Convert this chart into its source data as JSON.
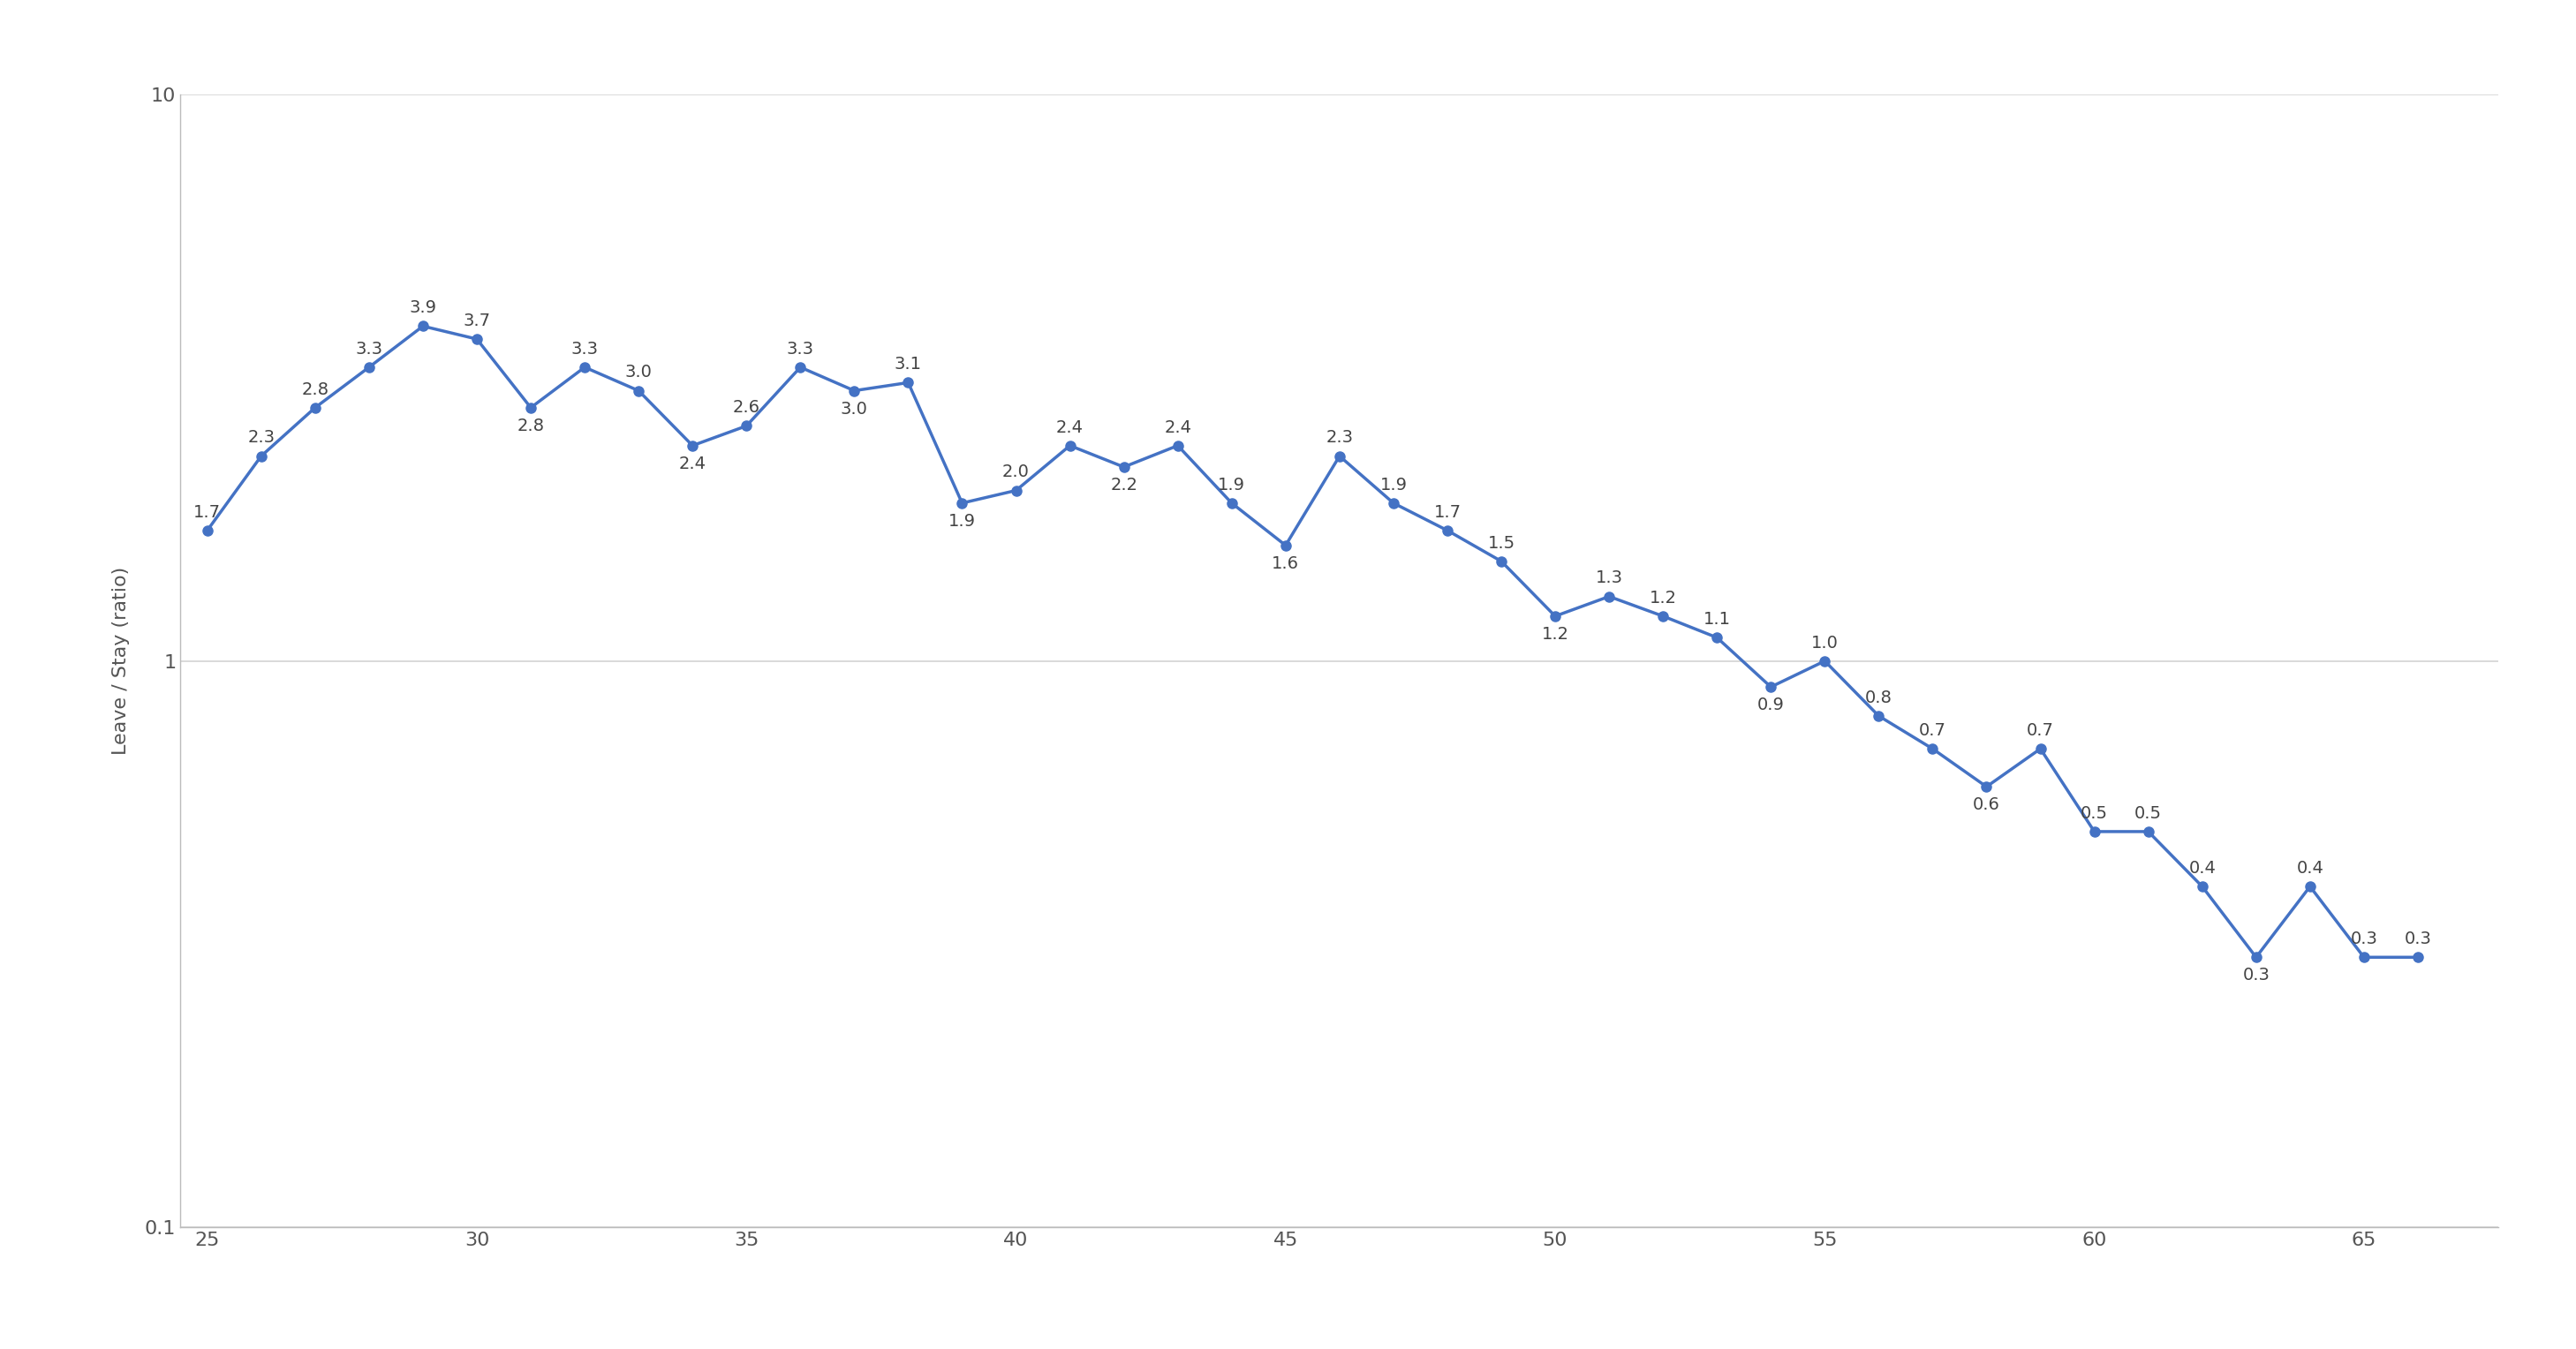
{
  "x": [
    25,
    26,
    27,
    28,
    29,
    30,
    31,
    32,
    33,
    34,
    35,
    36,
    37,
    38,
    39,
    40,
    41,
    42,
    43,
    44,
    45,
    46,
    47,
    48,
    49,
    50,
    51,
    52,
    53,
    54,
    55,
    56,
    57,
    58,
    59,
    60,
    61,
    62,
    63,
    64,
    65,
    66
  ],
  "y": [
    1.7,
    2.3,
    2.8,
    3.3,
    3.9,
    3.7,
    2.8,
    3.3,
    3.0,
    2.4,
    2.6,
    3.3,
    3.0,
    3.1,
    1.9,
    2.0,
    2.4,
    2.2,
    2.4,
    1.9,
    1.6,
    2.3,
    1.9,
    1.7,
    1.5,
    1.2,
    1.3,
    1.2,
    1.1,
    0.9,
    1.0,
    0.8,
    0.7,
    0.6,
    0.7,
    0.5,
    0.5,
    0.4,
    0.3,
    0.4,
    0.3,
    0.3
  ],
  "labels": [
    "1.7",
    "2.3",
    "2.8",
    "3.3",
    "3.9",
    "3.7",
    "2.8",
    "3.3",
    "3.0",
    "2.4",
    "2.6",
    "3.3",
    "3.0",
    "3.1",
    "1.9",
    "2.0",
    "2.4",
    "2.2",
    "2.4",
    "1.9",
    "1.6",
    "2.3",
    "1.9",
    "1.7",
    "1.5",
    "1.2",
    "1.3",
    "1.2",
    "1.1",
    "0.9",
    "1.0",
    "0.8",
    "0.7",
    "0.6",
    "0.7",
    "0.5",
    "0.5",
    "0.4",
    "0.3",
    "0.4",
    "0.3",
    "0.3"
  ],
  "line_color": "#4472C4",
  "marker_color": "#4472C4",
  "ylabel": "Leave / Stay (ratio)",
  "xlabel": "",
  "ylim_min": 0.1,
  "ylim_max": 10,
  "xlim_min": 24.5,
  "xlim_max": 67.5,
  "xticks": [
    25,
    30,
    35,
    40,
    45,
    50,
    55,
    60,
    65
  ],
  "yticks": [
    0.1,
    1,
    10
  ],
  "ytick_labels": [
    "0.1",
    "1",
    "10"
  ],
  "grid_color": "#d3d3d3",
  "background_color": "#ffffff",
  "label_fontsize": 16,
  "tick_fontsize": 16,
  "annotation_fontsize": 14
}
